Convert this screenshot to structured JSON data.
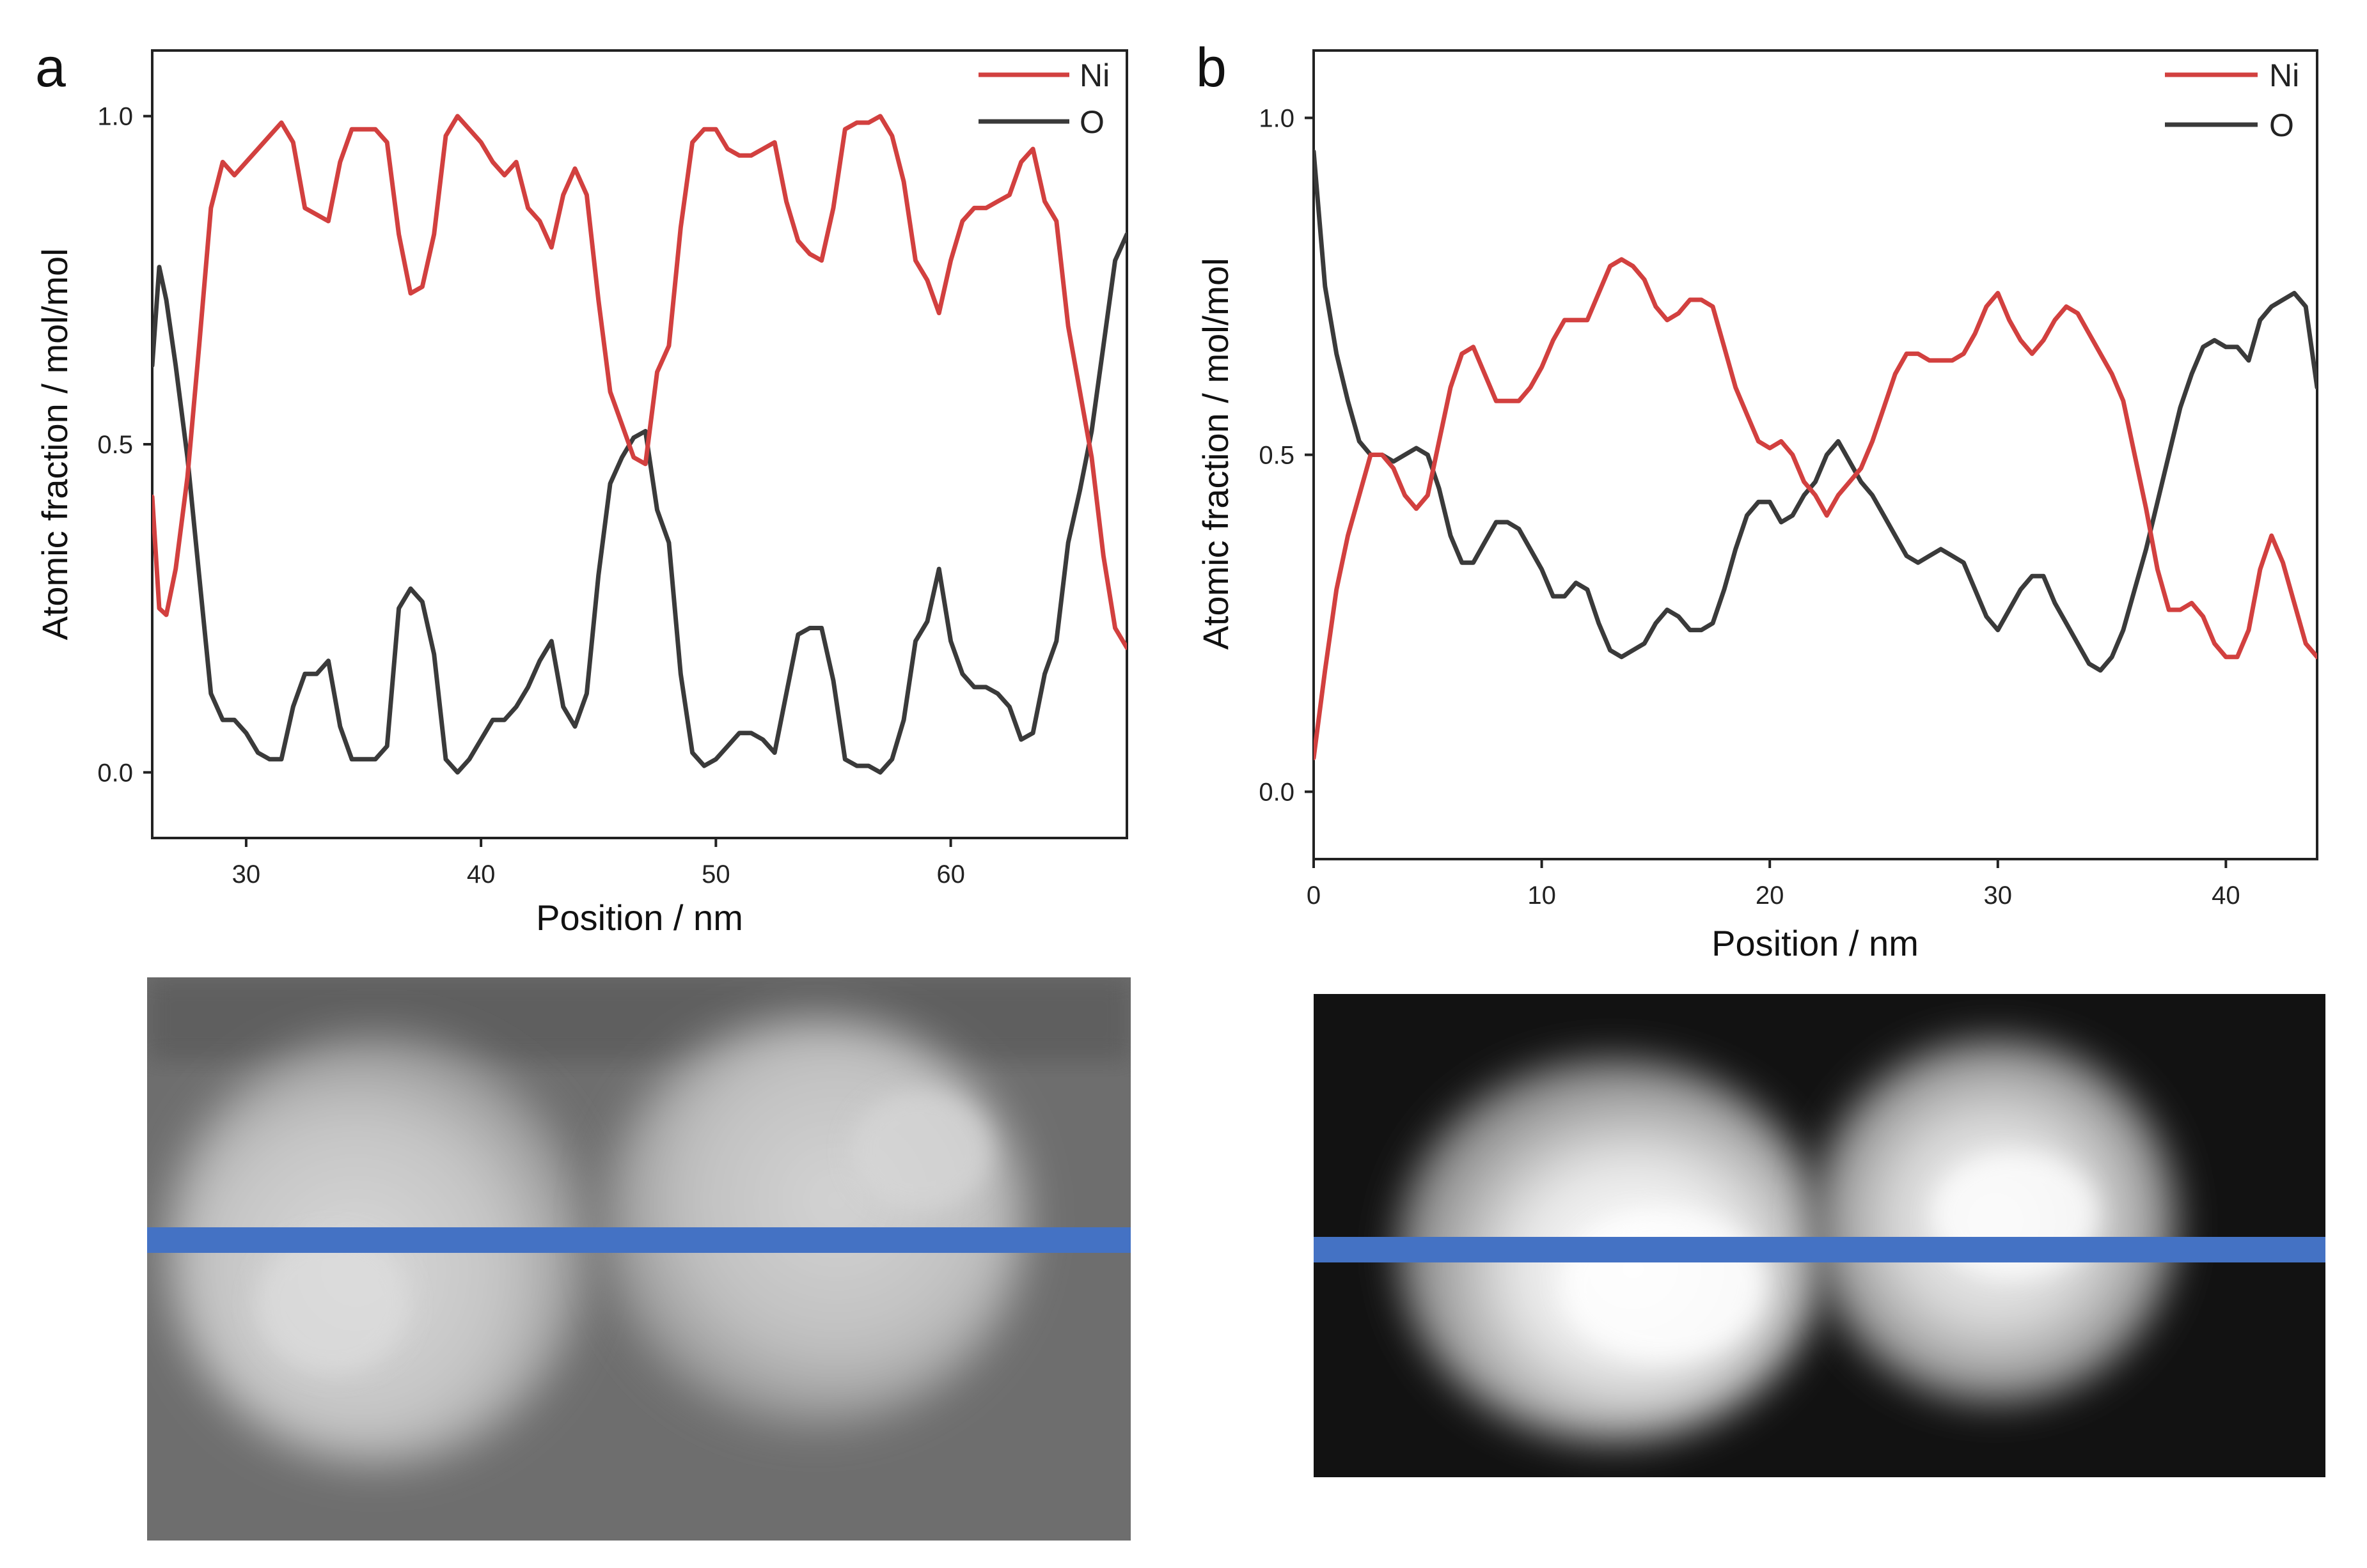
{
  "panels": [
    {
      "label": "a",
      "colors": {
        "Ni": "#d2403f",
        "O": "#3a3a3a",
        "scan_line": "#4472c4"
      },
      "micrograph": {
        "style": "grey",
        "description_icon": "stem-micrograph-icon"
      },
      "chart_data": {
        "type": "line",
        "xlabel": "Position / nm",
        "ylabel": "Atomic fraction / mol/mol",
        "xlim": [
          26,
          67.5
        ],
        "ylim": [
          -0.1,
          1.1
        ],
        "xticks": [
          30,
          40,
          50,
          60
        ],
        "yticks": [
          0.0,
          0.5,
          1.0
        ],
        "ytick_labels": [
          "0.0",
          "0.5",
          "1.0"
        ],
        "legend": "top-right",
        "series": [
          {
            "name": "Ni",
            "color": "#d2403f",
            "x": [
              26.0,
              26.3,
              26.6,
              27.0,
              27.5,
              28.0,
              28.5,
              29.0,
              29.5,
              30.0,
              30.5,
              31.0,
              31.5,
              32.0,
              32.5,
              33.0,
              33.5,
              34.0,
              34.5,
              35.0,
              35.5,
              36.0,
              36.5,
              37.0,
              37.5,
              38.0,
              38.5,
              39.0,
              39.5,
              40.0,
              40.5,
              41.0,
              41.5,
              42.0,
              42.5,
              43.0,
              43.5,
              44.0,
              44.5,
              45.0,
              45.5,
              46.0,
              46.5,
              47.0,
              47.5,
              48.0,
              48.5,
              49.0,
              49.5,
              50.0,
              50.5,
              51.0,
              51.5,
              52.0,
              52.5,
              53.0,
              53.5,
              54.0,
              54.5,
              55.0,
              55.5,
              56.0,
              56.5,
              57.0,
              57.5,
              58.0,
              58.5,
              59.0,
              59.5,
              60.0,
              60.5,
              61.0,
              61.5,
              62.0,
              62.5,
              63.0,
              63.5,
              64.0,
              64.5,
              65.0,
              65.5,
              66.0,
              66.5,
              67.0,
              67.5
            ],
            "y": [
              0.42,
              0.25,
              0.24,
              0.31,
              0.45,
              0.65,
              0.86,
              0.93,
              0.91,
              0.93,
              0.95,
              0.97,
              0.99,
              0.96,
              0.86,
              0.85,
              0.84,
              0.93,
              0.98,
              0.98,
              0.98,
              0.96,
              0.82,
              0.73,
              0.74,
              0.82,
              0.97,
              1.0,
              0.98,
              0.96,
              0.93,
              0.91,
              0.93,
              0.86,
              0.84,
              0.8,
              0.88,
              0.92,
              0.88,
              0.72,
              0.58,
              0.53,
              0.48,
              0.47,
              0.61,
              0.65,
              0.83,
              0.96,
              0.98,
              0.98,
              0.95,
              0.94,
              0.94,
              0.95,
              0.96,
              0.87,
              0.81,
              0.79,
              0.78,
              0.86,
              0.98,
              0.99,
              0.99,
              1.0,
              0.97,
              0.9,
              0.78,
              0.75,
              0.7,
              0.78,
              0.84,
              0.86,
              0.86,
              0.87,
              0.88,
              0.93,
              0.95,
              0.87,
              0.84,
              0.68,
              0.58,
              0.48,
              0.33,
              0.22,
              0.19
            ]
          },
          {
            "name": "O",
            "color": "#3a3a3a",
            "x": [
              26.0,
              26.3,
              26.6,
              27.0,
              27.5,
              28.0,
              28.5,
              29.0,
              29.5,
              30.0,
              30.5,
              31.0,
              31.5,
              32.0,
              32.5,
              33.0,
              33.5,
              34.0,
              34.5,
              35.0,
              35.5,
              36.0,
              36.5,
              37.0,
              37.5,
              38.0,
              38.5,
              39.0,
              39.5,
              40.0,
              40.5,
              41.0,
              41.5,
              42.0,
              42.5,
              43.0,
              43.5,
              44.0,
              44.5,
              45.0,
              45.5,
              46.0,
              46.5,
              47.0,
              47.5,
              48.0,
              48.5,
              49.0,
              49.5,
              50.0,
              50.5,
              51.0,
              51.5,
              52.0,
              52.5,
              53.0,
              53.5,
              54.0,
              54.5,
              55.0,
              55.5,
              56.0,
              56.5,
              57.0,
              57.5,
              58.0,
              58.5,
              59.0,
              59.5,
              60.0,
              60.5,
              61.0,
              61.5,
              62.0,
              62.5,
              63.0,
              63.5,
              64.0,
              64.5,
              65.0,
              65.5,
              66.0,
              66.5,
              67.0,
              67.5
            ],
            "y": [
              0.62,
              0.77,
              0.72,
              0.62,
              0.48,
              0.3,
              0.12,
              0.08,
              0.08,
              0.06,
              0.03,
              0.02,
              0.02,
              0.1,
              0.15,
              0.15,
              0.17,
              0.07,
              0.02,
              0.02,
              0.02,
              0.04,
              0.25,
              0.28,
              0.26,
              0.18,
              0.02,
              0.0,
              0.02,
              0.05,
              0.08,
              0.08,
              0.1,
              0.13,
              0.17,
              0.2,
              0.1,
              0.07,
              0.12,
              0.3,
              0.44,
              0.48,
              0.51,
              0.52,
              0.4,
              0.35,
              0.15,
              0.03,
              0.01,
              0.02,
              0.04,
              0.06,
              0.06,
              0.05,
              0.03,
              0.12,
              0.21,
              0.22,
              0.22,
              0.14,
              0.02,
              0.01,
              0.01,
              0.0,
              0.02,
              0.08,
              0.2,
              0.23,
              0.31,
              0.2,
              0.15,
              0.13,
              0.13,
              0.12,
              0.1,
              0.05,
              0.06,
              0.15,
              0.2,
              0.35,
              0.43,
              0.52,
              0.65,
              0.78,
              0.82
            ]
          }
        ]
      }
    },
    {
      "label": "b",
      "colors": {
        "Ni": "#d2403f",
        "O": "#3a3a3a",
        "scan_line": "#4472c4"
      },
      "micrograph": {
        "style": "dark",
        "description_icon": "stem-micrograph-icon"
      },
      "chart_data": {
        "type": "line",
        "xlabel": "Position / nm",
        "ylabel": "Atomic fraction / mol/mol",
        "xlim": [
          0,
          44
        ],
        "ylim": [
          -0.1,
          1.1
        ],
        "xticks": [
          0,
          10,
          20,
          30,
          40
        ],
        "yticks": [
          0.0,
          0.5,
          1.0
        ],
        "ytick_labels": [
          "0.0",
          "0.5",
          "1.0"
        ],
        "legend": "top-right",
        "series": [
          {
            "name": "Ni",
            "color": "#d2403f",
            "x": [
              0,
              0.5,
              1,
              1.5,
              2,
              2.5,
              3,
              3.5,
              4,
              4.5,
              5,
              5.5,
              6,
              6.5,
              7,
              7.5,
              8,
              8.5,
              9,
              9.5,
              10,
              10.5,
              11,
              11.5,
              12,
              12.5,
              13,
              13.5,
              14,
              14.5,
              15,
              15.5,
              16,
              16.5,
              17,
              17.5,
              18,
              18.5,
              19,
              19.5,
              20,
              20.5,
              21,
              21.5,
              22,
              22.5,
              23,
              23.5,
              24,
              24.5,
              25,
              25.5,
              26,
              26.5,
              27,
              27.5,
              28,
              28.5,
              29,
              29.5,
              30,
              30.5,
              31,
              31.5,
              32,
              32.5,
              33,
              33.5,
              34,
              34.5,
              35,
              35.5,
              36,
              36.5,
              37,
              37.5,
              38,
              38.5,
              39,
              39.5,
              40,
              40.5,
              41,
              41.5,
              42,
              42.5,
              43,
              43.5,
              44
            ],
            "y": [
              0.05,
              0.18,
              0.3,
              0.38,
              0.44,
              0.5,
              0.5,
              0.48,
              0.44,
              0.42,
              0.44,
              0.52,
              0.6,
              0.65,
              0.66,
              0.62,
              0.58,
              0.58,
              0.58,
              0.6,
              0.63,
              0.67,
              0.7,
              0.7,
              0.7,
              0.74,
              0.78,
              0.79,
              0.78,
              0.76,
              0.72,
              0.7,
              0.71,
              0.73,
              0.73,
              0.72,
              0.66,
              0.6,
              0.56,
              0.52,
              0.51,
              0.52,
              0.5,
              0.46,
              0.44,
              0.41,
              0.44,
              0.46,
              0.48,
              0.52,
              0.57,
              0.62,
              0.65,
              0.65,
              0.64,
              0.64,
              0.64,
              0.65,
              0.68,
              0.72,
              0.74,
              0.7,
              0.67,
              0.65,
              0.67,
              0.7,
              0.72,
              0.71,
              0.68,
              0.65,
              0.62,
              0.58,
              0.5,
              0.42,
              0.33,
              0.27,
              0.27,
              0.28,
              0.26,
              0.22,
              0.2,
              0.2,
              0.24,
              0.33,
              0.38,
              0.34,
              0.28,
              0.22,
              0.2
            ]
          },
          {
            "name": "O",
            "color": "#3a3a3a",
            "x": [
              0,
              0.5,
              1,
              1.5,
              2,
              2.5,
              3,
              3.5,
              4,
              4.5,
              5,
              5.5,
              6,
              6.5,
              7,
              7.5,
              8,
              8.5,
              9,
              9.5,
              10,
              10.5,
              11,
              11.5,
              12,
              12.5,
              13,
              13.5,
              14,
              14.5,
              15,
              15.5,
              16,
              16.5,
              17,
              17.5,
              18,
              18.5,
              19,
              19.5,
              20,
              20.5,
              21,
              21.5,
              22,
              22.5,
              23,
              23.5,
              24,
              24.5,
              25,
              25.5,
              26,
              26.5,
              27,
              27.5,
              28,
              28.5,
              29,
              29.5,
              30,
              30.5,
              31,
              31.5,
              32,
              32.5,
              33,
              33.5,
              34,
              34.5,
              35,
              35.5,
              36,
              36.5,
              37,
              37.5,
              38,
              38.5,
              39,
              39.5,
              40,
              40.5,
              41,
              41.5,
              42,
              42.5,
              43,
              43.5,
              44
            ],
            "y": [
              0.95,
              0.75,
              0.65,
              0.58,
              0.52,
              0.5,
              0.5,
              0.49,
              0.5,
              0.51,
              0.5,
              0.45,
              0.38,
              0.34,
              0.34,
              0.37,
              0.4,
              0.4,
              0.39,
              0.36,
              0.33,
              0.29,
              0.29,
              0.31,
              0.3,
              0.25,
              0.21,
              0.2,
              0.21,
              0.22,
              0.25,
              0.27,
              0.26,
              0.24,
              0.24,
              0.25,
              0.3,
              0.36,
              0.41,
              0.43,
              0.43,
              0.4,
              0.41,
              0.44,
              0.46,
              0.5,
              0.52,
              0.49,
              0.46,
              0.44,
              0.41,
              0.38,
              0.35,
              0.34,
              0.35,
              0.36,
              0.35,
              0.34,
              0.3,
              0.26,
              0.24,
              0.27,
              0.3,
              0.32,
              0.32,
              0.28,
              0.25,
              0.22,
              0.19,
              0.18,
              0.2,
              0.24,
              0.3,
              0.36,
              0.43,
              0.5,
              0.57,
              0.62,
              0.66,
              0.67,
              0.66,
              0.66,
              0.64,
              0.7,
              0.72,
              0.73,
              0.74,
              0.72,
              0.6
            ]
          }
        ]
      }
    }
  ]
}
